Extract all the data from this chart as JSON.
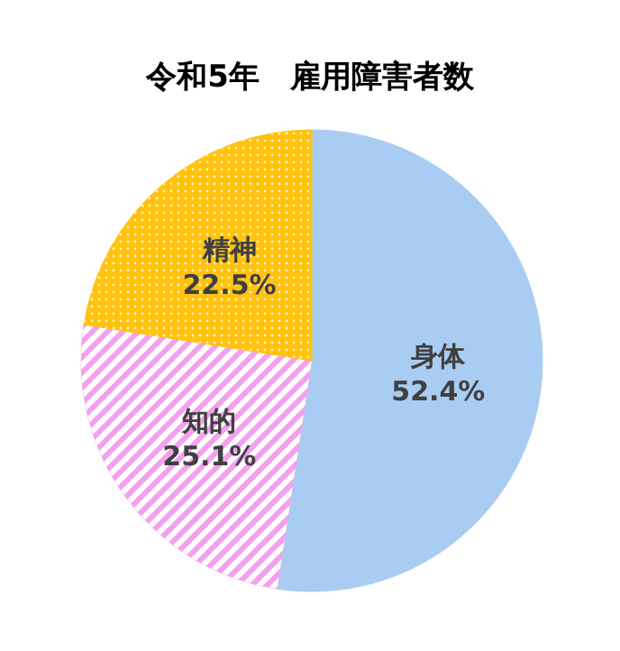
{
  "chart_data": {
    "type": "pie",
    "title": "令和5年　雇用障害者数",
    "categories": [
      "身体",
      "知的",
      "精神"
    ],
    "values": [
      52.4,
      25.1,
      22.5
    ],
    "value_labels": [
      "52.4%",
      "25.1%",
      "22.5%"
    ],
    "colors": [
      "#a9cdf2",
      "#f4a0ee",
      "#ffc20e"
    ],
    "legend": false
  }
}
